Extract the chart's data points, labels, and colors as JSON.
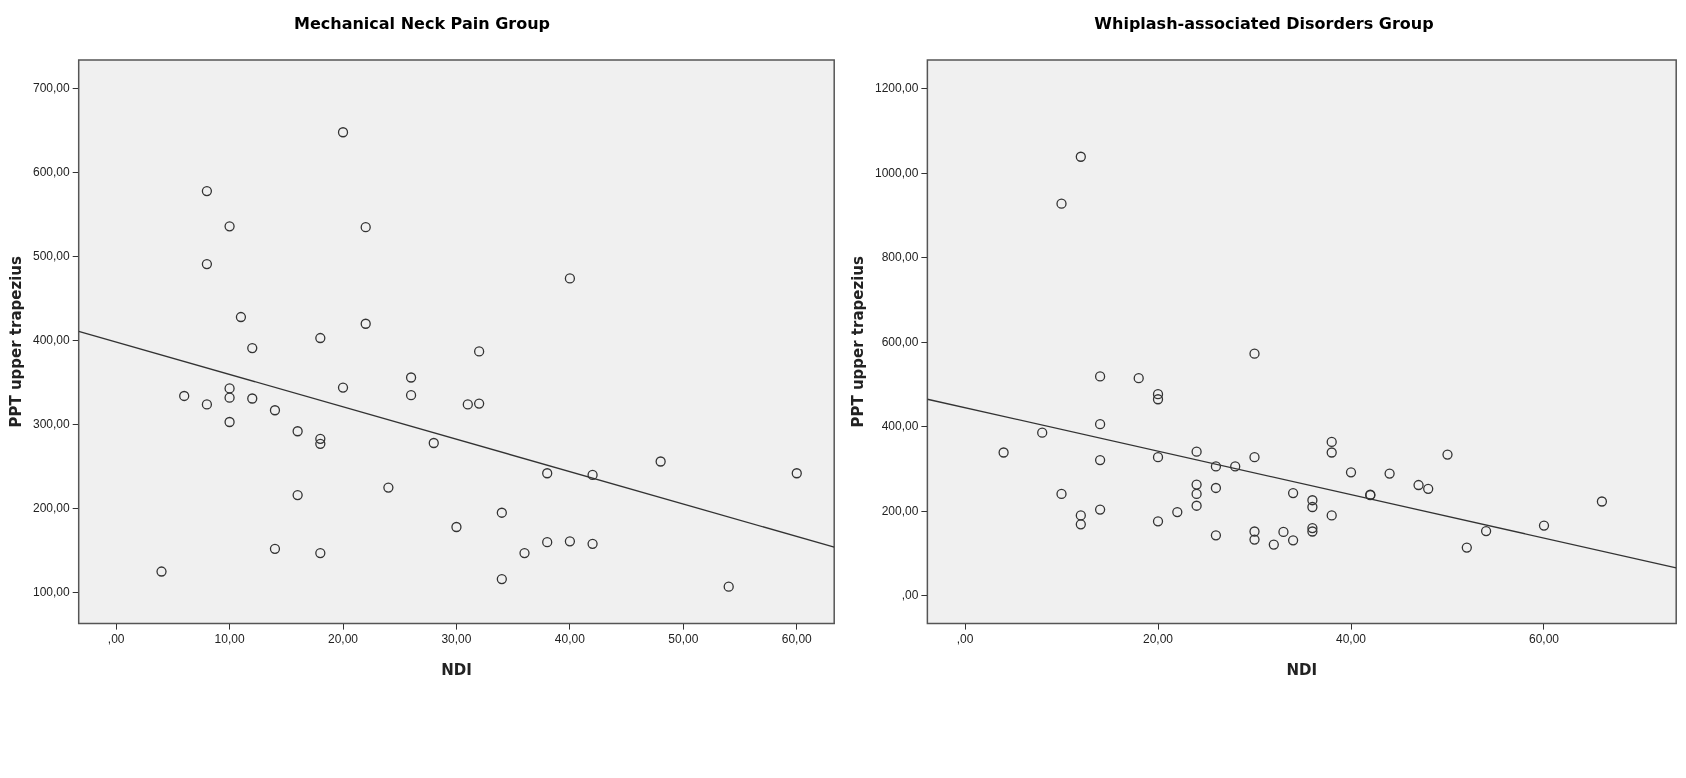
{
  "chart_data": [
    {
      "type": "scatter",
      "title": "Mechanical Neck Pain Group",
      "xlabel": "NDI",
      "ylabel": "PPT upper trapezius",
      "grid": false,
      "legend": false,
      "xlim": [
        -3.3,
        63.3
      ],
      "ylim": [
        63,
        734
      ],
      "xticks": [
        {
          "value": 0,
          "label": ",00"
        },
        {
          "value": 10,
          "label": "10,00"
        },
        {
          "value": 20,
          "label": "20,00"
        },
        {
          "value": 30,
          "label": "30,00"
        },
        {
          "value": 40,
          "label": "40,00"
        },
        {
          "value": 50,
          "label": "50,00"
        },
        {
          "value": 60,
          "label": "60,00"
        }
      ],
      "yticks": [
        {
          "value": 100,
          "label": "100,00"
        },
        {
          "value": 200,
          "label": "200,00"
        },
        {
          "value": 300,
          "label": "300,00"
        },
        {
          "value": 400,
          "label": "400,00"
        },
        {
          "value": 500,
          "label": "500,00"
        },
        {
          "value": 600,
          "label": "600,00"
        },
        {
          "value": 700,
          "label": "700,00"
        }
      ],
      "series": [
        {
          "type": "scatter",
          "marker": "circle",
          "color": "#333333",
          "x": [
            12,
            18,
            32,
            26,
            20,
            10,
            6,
            10,
            12,
            26,
            8,
            31,
            32,
            14,
            10,
            16,
            18,
            18,
            28,
            48,
            38,
            42,
            60,
            24,
            16,
            34,
            30,
            14,
            18,
            38,
            40,
            42,
            36,
            4,
            34,
            54,
            20,
            8,
            10,
            22,
            8,
            40,
            11,
            22
          ],
          "values": [
            391,
            403,
            387,
            356,
            344,
            343,
            334,
            332,
            331,
            335,
            324,
            324,
            325,
            317,
            303,
            292,
            283,
            277,
            278,
            256,
            242,
            240,
            242,
            225,
            216,
            195,
            178,
            152,
            147,
            160,
            161,
            158,
            147,
            125,
            116,
            107,
            648,
            578,
            536,
            535,
            491,
            474,
            428,
            420
          ]
        },
        {
          "type": "line",
          "marker": "none",
          "color": "#333333",
          "x": [
            -3.3,
            63.3
          ],
          "values": [
            411,
            154
          ]
        }
      ]
    },
    {
      "type": "scatter",
      "title": "Whiplash-associated Disorders Group",
      "xlabel": "NDI",
      "ylabel": "PPT upper trapezius",
      "grid": false,
      "legend": false,
      "xlim": [
        -3.9,
        73.7
      ],
      "ylim": [
        -66,
        1268
      ],
      "xticks": [
        {
          "value": 0,
          "label": ",00"
        },
        {
          "value": 20,
          "label": "20,00"
        },
        {
          "value": 40,
          "label": "40,00"
        },
        {
          "value": 60,
          "label": "60,00"
        }
      ],
      "yticks": [
        {
          "value": 0,
          "label": ",00"
        },
        {
          "value": 200,
          "label": "200,00"
        },
        {
          "value": 400,
          "label": "400,00"
        },
        {
          "value": 600,
          "label": "600,00"
        },
        {
          "value": 800,
          "label": "800,00"
        },
        {
          "value": 1000,
          "label": "1000,00"
        },
        {
          "value": 1200,
          "label": "1200,00"
        }
      ],
      "series": [
        {
          "type": "scatter",
          "marker": "circle",
          "color": "#333333",
          "x": [
            12,
            10,
            30,
            14,
            18,
            20,
            20,
            14,
            8,
            4,
            14,
            20,
            24,
            30,
            26,
            28,
            38,
            38,
            40,
            44,
            50,
            47,
            48,
            10,
            24,
            24,
            26,
            34,
            36,
            36,
            42,
            42,
            12,
            12,
            14,
            22,
            24,
            20,
            38,
            26,
            30,
            30,
            32,
            33,
            34,
            36,
            36,
            54,
            52,
            60,
            66
          ],
          "values": [
            1039,
            928,
            573,
            519,
            515,
            477,
            465,
            406,
            386,
            339,
            321,
            328,
            341,
            328,
            306,
            306,
            364,
            339,
            292,
            289,
            334,
            262,
            253,
            241,
            263,
            241,
            255,
            243,
            226,
            210,
            239,
            238,
            190,
            169,
            204,
            198,
            213,
            176,
            190,
            143,
            152,
            133,
            121,
            151,
            131,
            160,
            152,
            153,
            114,
            166,
            223
          ]
        },
        {
          "type": "line",
          "marker": "none",
          "color": "#333333",
          "x": [
            -3.9,
            73.7
          ],
          "values": [
            465,
            66
          ]
        }
      ]
    }
  ]
}
